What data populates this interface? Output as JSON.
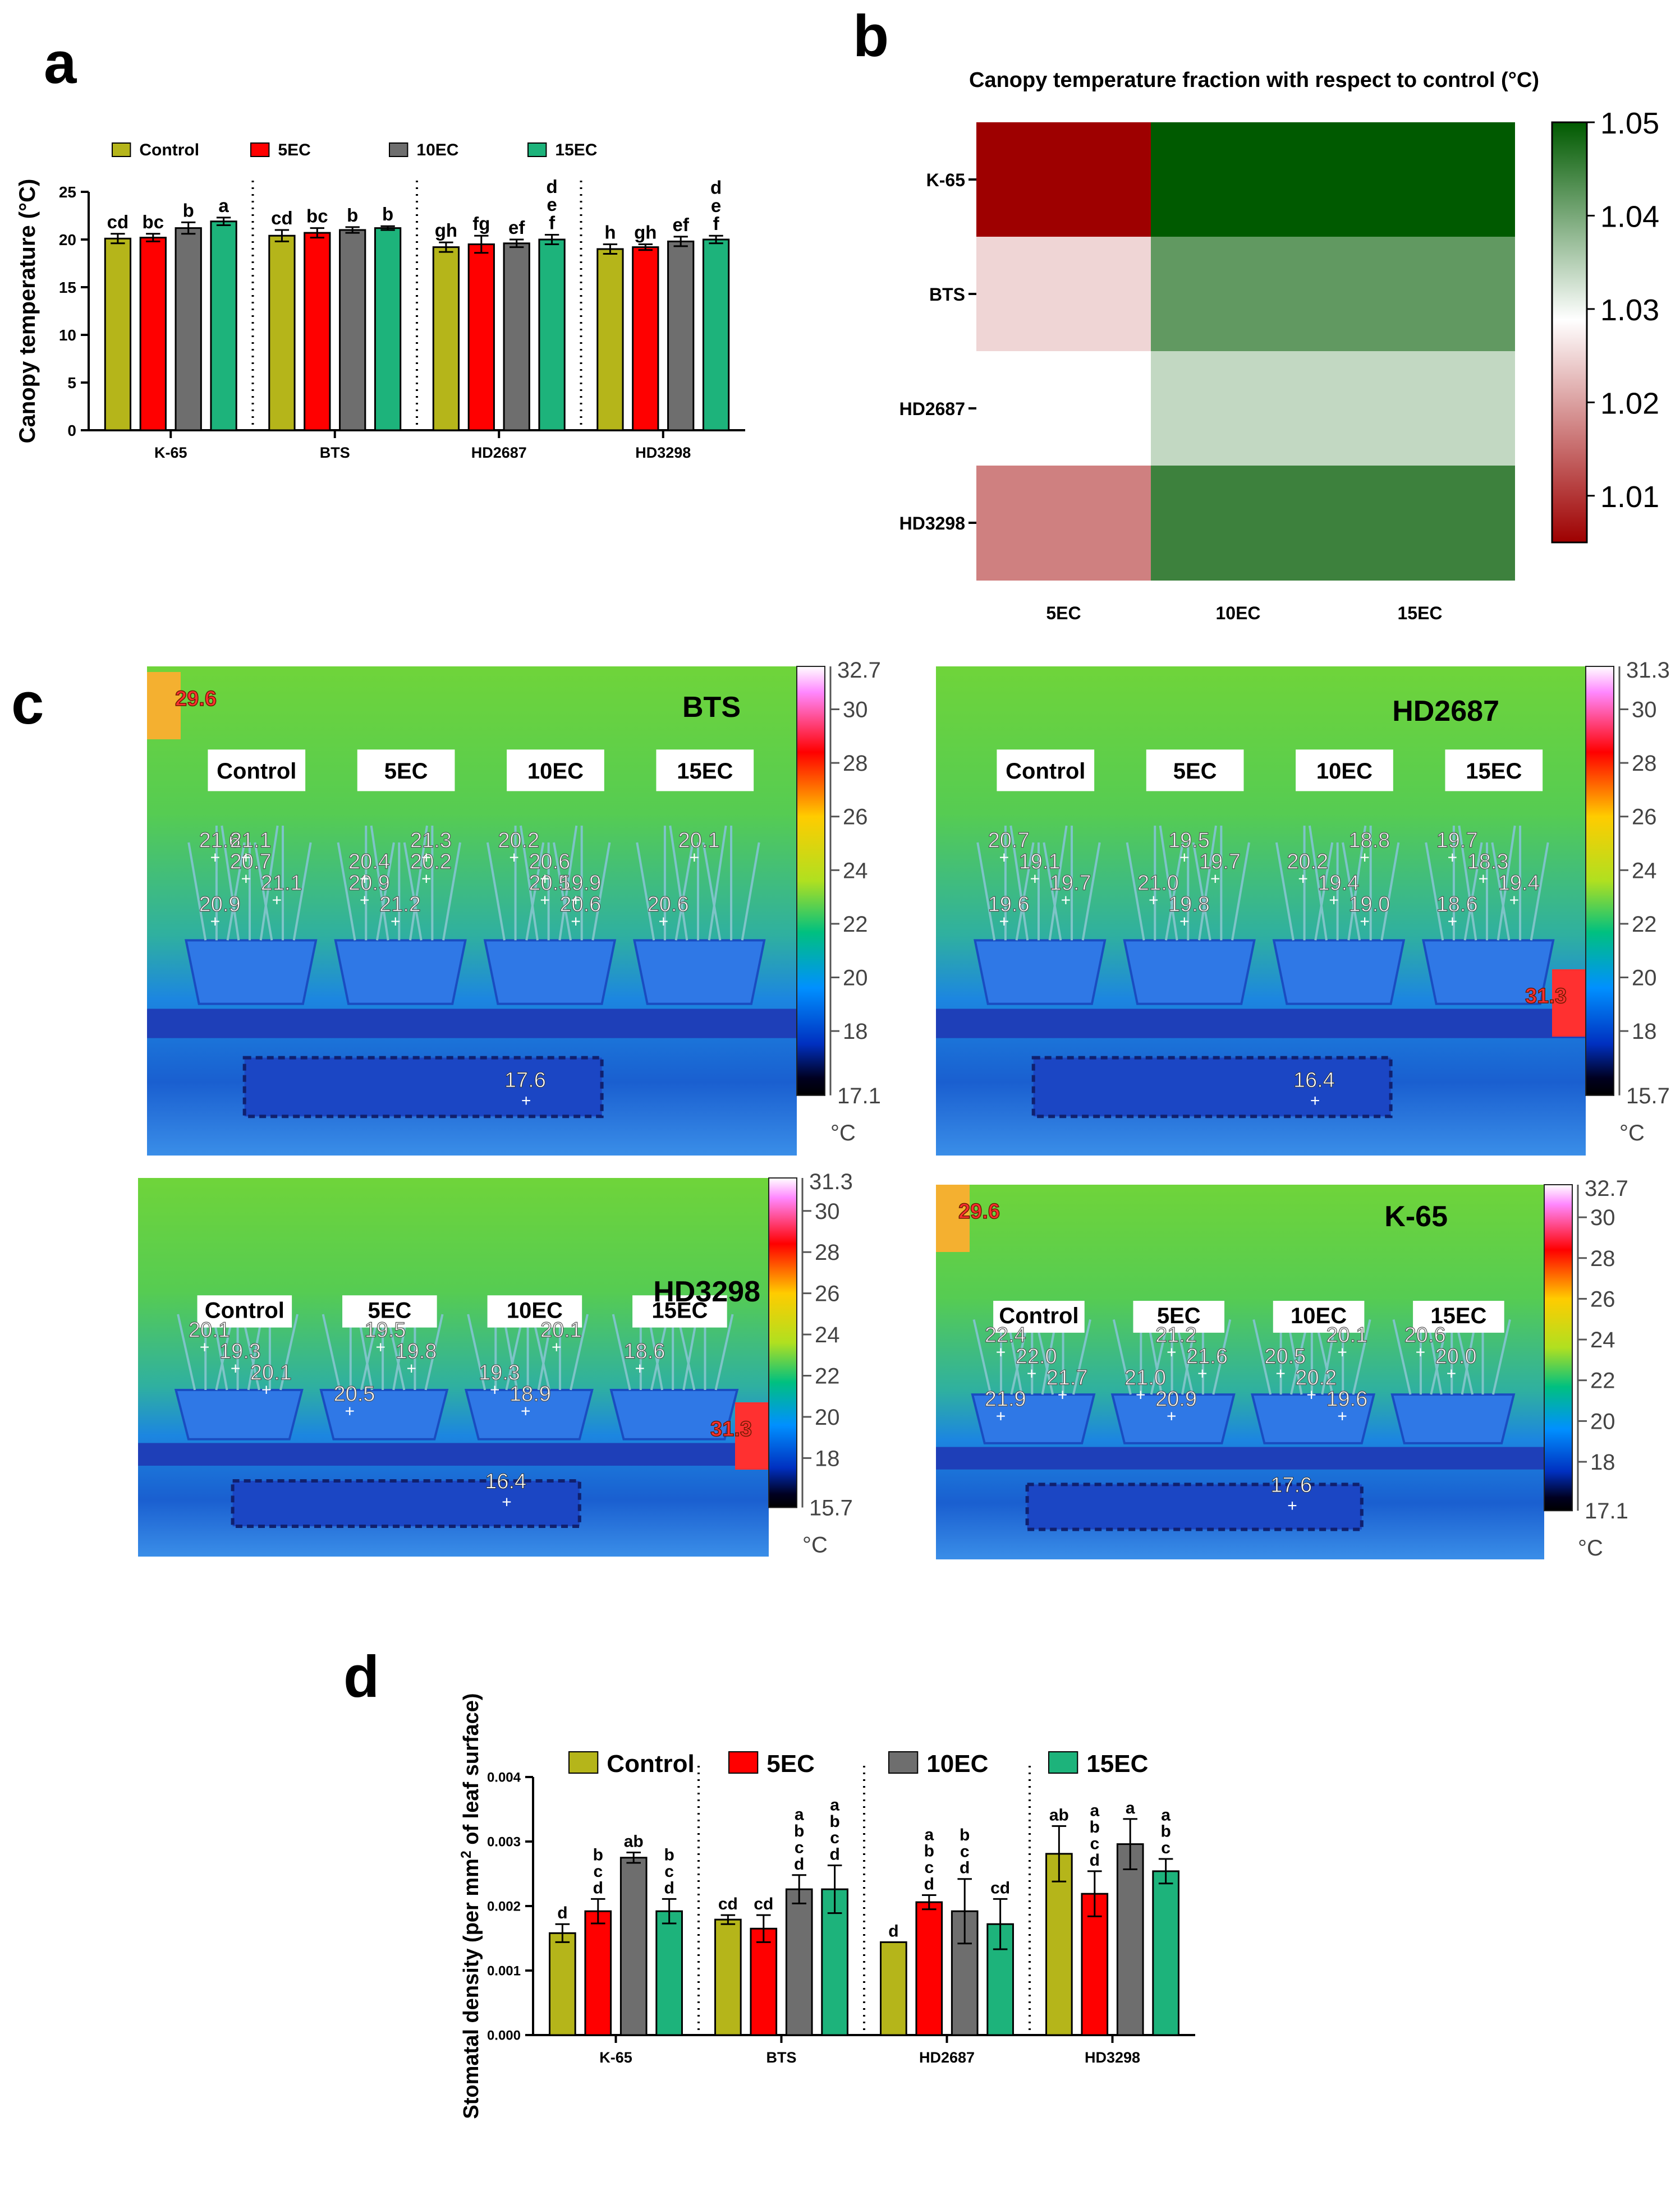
{
  "panels": {
    "a": "a",
    "b": "b",
    "c": "c",
    "d": "d"
  },
  "colors": {
    "control": "#b5b51a",
    "ec5": "#ff0000",
    "ec10": "#6e6e6e",
    "ec15": "#1db37b",
    "heat_low": "#9e0000",
    "heat_mid": "#ffffff",
    "heat_high": "#005a00"
  },
  "chart_data": [
    {
      "id": "a",
      "type": "bar",
      "ylabel": "Canopy temperature (°C)",
      "ylim": [
        0,
        25
      ],
      "yticks": [
        "0",
        "5",
        "10",
        "15",
        "20",
        "25"
      ],
      "legend": [
        "Control",
        "5EC",
        "10EC",
        "15EC"
      ],
      "legend_position": "top",
      "groups": [
        "K-65",
        "BTS",
        "HD2687",
        "HD3298"
      ],
      "series": [
        {
          "name": "Control",
          "values": [
            20.1,
            20.4,
            19.2,
            19.0
          ],
          "errors": [
            0.5,
            0.6,
            0.5,
            0.5
          ]
        },
        {
          "name": "5EC",
          "values": [
            20.2,
            20.7,
            19.5,
            19.2
          ],
          "errors": [
            0.4,
            0.5,
            0.9,
            0.3
          ]
        },
        {
          "name": "10EC",
          "values": [
            21.2,
            21.0,
            19.6,
            19.8
          ],
          "errors": [
            0.6,
            0.3,
            0.4,
            0.5
          ]
        },
        {
          "name": "15EC",
          "values": [
            21.9,
            21.2,
            20.0,
            20.0
          ],
          "errors": [
            0.4,
            0.2,
            0.5,
            0.4
          ]
        }
      ],
      "letters": [
        [
          [
            "cd"
          ],
          [
            "bc"
          ],
          [
            "b"
          ],
          [
            "a"
          ]
        ],
        [
          [
            "cd"
          ],
          [
            "bc"
          ],
          [
            "b"
          ],
          [
            "b"
          ]
        ],
        [
          [
            "gh"
          ],
          [
            "fg"
          ],
          [
            "ef"
          ],
          [
            "d",
            "e",
            "f"
          ]
        ],
        [
          [
            "h"
          ],
          [
            "gh"
          ],
          [
            "ef"
          ],
          [
            "d",
            "e",
            "f"
          ]
        ]
      ]
    },
    {
      "id": "b",
      "type": "heatmap",
      "title": "Canopy temperature fraction with respect to control (°C)",
      "rows": [
        "K-65",
        "BTS",
        "HD2687",
        "HD3298"
      ],
      "cols": [
        "5EC",
        "10EC",
        "15EC"
      ],
      "values": [
        [
          1.005,
          1.05,
          1.05
        ],
        [
          1.025,
          1.042,
          1.042
        ],
        [
          1.029,
          1.034,
          1.034
        ],
        [
          1.017,
          1.045,
          1.045
        ]
      ],
      "vmin": 1.005,
      "vmid": 1.029,
      "vmax": 1.05,
      "colorbar_ticks": [
        "1.01",
        "1.02",
        "1.03",
        "1.04",
        "1.05"
      ],
      "colorbar_tick_values": [
        1.01,
        1.02,
        1.03,
        1.04,
        1.05
      ]
    },
    {
      "id": "d",
      "type": "bar",
      "ylabel": "Stomatal density (per mm2 of leaf surface)",
      "ylabel_main": "Stomatal density (per mm",
      "ylabel_sup": "2",
      "ylabel_tail": " of leaf surface)",
      "ylim": [
        0,
        0.004
      ],
      "yticks": [
        "0.000",
        "0.001",
        "0.002",
        "0.003",
        "0.004"
      ],
      "legend": [
        "Control",
        "5EC",
        "10EC",
        "15EC"
      ],
      "legend_position": "top",
      "groups": [
        "K-65",
        "BTS",
        "HD2687",
        "HD3298"
      ],
      "series": [
        {
          "name": "Control",
          "values": [
            0.00158,
            0.00179,
            0.00144,
            0.00281
          ],
          "errors": [
            0.00014,
            7e-05,
            0.0,
            0.00043
          ]
        },
        {
          "name": "5EC",
          "values": [
            0.00192,
            0.00165,
            0.00206,
            0.00219
          ],
          "errors": [
            0.00019,
            0.00021,
            0.00011,
            0.00035
          ]
        },
        {
          "name": "10EC",
          "values": [
            0.00275,
            0.00226,
            0.00192,
            0.00296
          ],
          "errors": [
            8e-05,
            0.00022,
            0.0005,
            0.00039
          ]
        },
        {
          "name": "15EC",
          "values": [
            0.00192,
            0.00226,
            0.00172,
            0.00254
          ],
          "errors": [
            0.00019,
            0.00037,
            0.00039,
            0.00019
          ]
        }
      ],
      "letters": [
        [
          [
            "d"
          ],
          [
            "b",
            "c",
            "d"
          ],
          [
            "ab"
          ],
          [
            "b",
            "c",
            "d"
          ]
        ],
        [
          [
            "cd"
          ],
          [
            "cd"
          ],
          [
            "a",
            "b",
            "c",
            "d"
          ],
          [
            "a",
            "b",
            "c",
            "d"
          ]
        ],
        [
          [
            "d"
          ],
          [
            "a",
            "b",
            "c",
            "d"
          ],
          [
            "b",
            "c",
            "d"
          ],
          [
            "cd"
          ]
        ],
        [
          [
            "ab"
          ],
          [
            "a",
            "b",
            "c",
            "d"
          ],
          [
            "a"
          ],
          [
            "a",
            "b",
            "c"
          ]
        ]
      ]
    }
  ],
  "thermal": [
    {
      "id": "bts",
      "label": "BTS",
      "pots": [
        "Control",
        "5EC",
        "10EC",
        "15EC"
      ],
      "scale_max": "32.7",
      "scale_min": "17.1",
      "scale_ticks": [
        "30",
        "28",
        "26",
        "24",
        "22",
        "20",
        "18"
      ],
      "unit": "°C",
      "hot_spot": "29.6",
      "cold_spot": "17.6",
      "readings": [
        "21.6",
        "20.7",
        "21.1",
        "20.9",
        "21.1",
        "20.2",
        "20.9",
        "21.2",
        "21.3",
        "20.4",
        "20.5",
        "20.6",
        "20.2",
        "20.6",
        "19.9",
        "20.6",
        "20.1"
      ]
    },
    {
      "id": "hd2687",
      "label": "HD2687",
      "pots": [
        "Control",
        "5EC",
        "10EC",
        "15EC"
      ],
      "scale_max": "31.3",
      "scale_min": "15.7",
      "scale_ticks": [
        "30",
        "28",
        "26",
        "24",
        "22",
        "20",
        "18"
      ],
      "unit": "°C",
      "hot_spot": "31.3",
      "cold_spot": "16.4",
      "readings": [
        "20.7",
        "19.1",
        "19.7",
        "19.6",
        "19.5",
        "19.7",
        "21.0",
        "19.8",
        "18.8",
        "20.2",
        "19.4",
        "19.0",
        "19.7",
        "18.3",
        "19.4",
        "18.6"
      ]
    },
    {
      "id": "hd3298",
      "label": "HD3298",
      "pots": [
        "Control",
        "5EC",
        "10EC",
        "15EC"
      ],
      "scale_max": "31.3",
      "scale_min": "15.7",
      "scale_ticks": [
        "30",
        "28",
        "26",
        "24",
        "22",
        "20",
        "18"
      ],
      "unit": "°C",
      "hot_spot": "31.3",
      "cold_spot": "16.4",
      "readings": [
        "20.1",
        "19.3",
        "20.1",
        "20.5",
        "19.5",
        "19.8",
        "19.3",
        "18.9",
        "20.1",
        "18.6"
      ]
    },
    {
      "id": "k65",
      "label": "K-65",
      "pots": [
        "Control",
        "5EC",
        "10EC",
        "15EC"
      ],
      "scale_max": "32.7",
      "scale_min": "17.1",
      "scale_ticks": [
        "30",
        "28",
        "26",
        "24",
        "22",
        "20",
        "18"
      ],
      "unit": "°C",
      "hot_spot": "29.6",
      "cold_spot": "17.6",
      "readings": [
        "22.4",
        "22.0",
        "21.7",
        "21.9",
        "21.2",
        "21.6",
        "21.0",
        "20.9",
        "20.1",
        "20.5",
        "20.2",
        "19.6",
        "20.6",
        "20.0"
      ]
    }
  ]
}
